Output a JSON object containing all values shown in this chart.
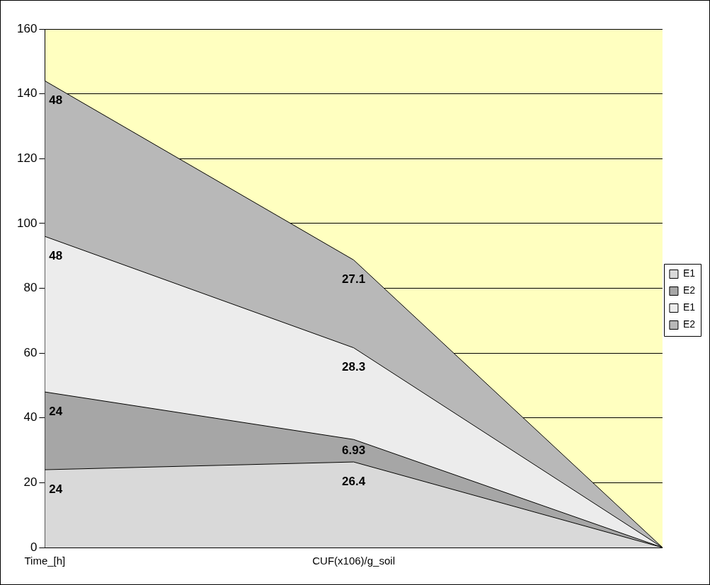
{
  "chart_data": {
    "type": "area",
    "stacked": true,
    "categories": [
      "Time_[h]",
      "CUF(x106)/g_soil",
      null
    ],
    "series": [
      {
        "name": "E1",
        "color": "#d9d9d9",
        "values": [
          24,
          26.4,
          0
        ],
        "value_labels": [
          "24",
          "26.4",
          null
        ]
      },
      {
        "name": "E2",
        "color": "#a6a6a6",
        "values": [
          24,
          6.93,
          0
        ],
        "value_labels": [
          "24",
          "6.93",
          null
        ]
      },
      {
        "name": "E1",
        "color": "#ececec",
        "values": [
          48,
          28.3,
          0
        ],
        "value_labels": [
          "48",
          "28.3",
          null
        ]
      },
      {
        "name": "E2",
        "color": "#b8b8b8",
        "values": [
          48,
          27.1,
          0
        ],
        "value_labels": [
          "48",
          "27.1",
          null
        ]
      }
    ],
    "ylim": [
      0,
      160
    ],
    "yticks": [
      0,
      20,
      40,
      60,
      80,
      100,
      120,
      140,
      160
    ],
    "grid": "y",
    "legend": "right",
    "marker": "none",
    "line_style": "solid"
  }
}
